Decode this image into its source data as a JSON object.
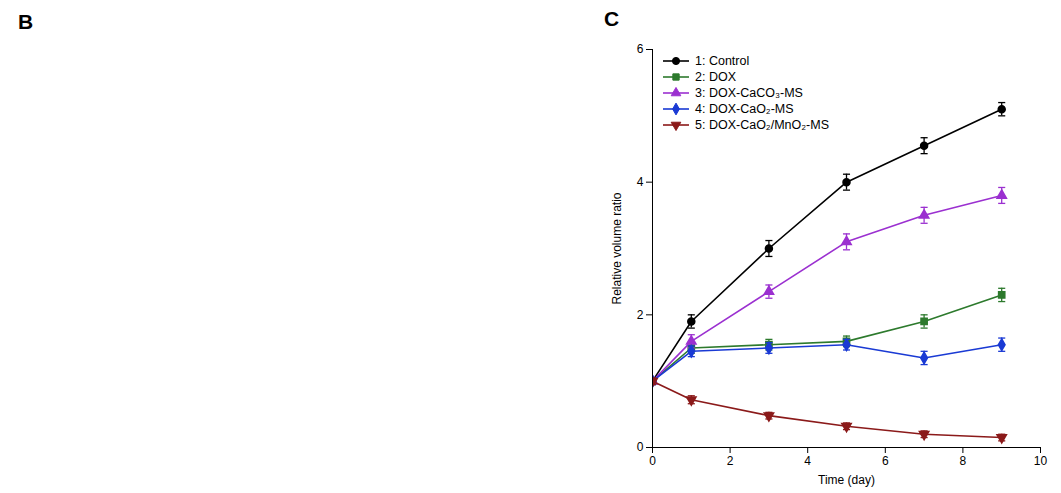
{
  "chart_data": {
    "type": "line",
    "title": "C",
    "annotations": [
      "B"
    ],
    "xlabel": "Time (day)",
    "ylabel": "Relative volume ratio",
    "xlim": [
      0,
      10
    ],
    "ylim": [
      0,
      6
    ],
    "xticks": [
      0,
      2,
      4,
      6,
      8,
      10
    ],
    "yticks": [
      0,
      2,
      4,
      6
    ],
    "grid": false,
    "legend": "upper left",
    "x": [
      0,
      1,
      3,
      5,
      7,
      9
    ],
    "series": [
      {
        "name": "1: Control",
        "color": "#000000",
        "marker": "circle",
        "values": [
          1.0,
          1.9,
          3.0,
          4.0,
          4.55,
          5.1
        ],
        "yerr": [
          0.05,
          0.1,
          0.12,
          0.12,
          0.12,
          0.1
        ]
      },
      {
        "name": "2: DOX",
        "color": "#2d7a2d",
        "marker": "square",
        "values": [
          1.0,
          1.5,
          1.55,
          1.6,
          1.9,
          2.3
        ],
        "yerr": [
          0.05,
          0.08,
          0.08,
          0.08,
          0.1,
          0.1
        ]
      },
      {
        "name": "3: DOX-CaCO₃-MS",
        "color": "#9b30d0",
        "marker": "triangle-up",
        "values": [
          1.0,
          1.6,
          2.35,
          3.1,
          3.5,
          3.8
        ],
        "yerr": [
          0.05,
          0.1,
          0.1,
          0.12,
          0.12,
          0.12
        ]
      },
      {
        "name": "4: DOX-CaO₂-MS",
        "color": "#1a3ad4",
        "marker": "diamond",
        "values": [
          1.0,
          1.45,
          1.5,
          1.55,
          1.35,
          1.55
        ],
        "yerr": [
          0.05,
          0.08,
          0.08,
          0.08,
          0.1,
          0.1
        ]
      },
      {
        "name": "5: DOX-CaO₂/MnO₂-MS",
        "color": "#8b1a1a",
        "marker": "triangle-down",
        "values": [
          1.0,
          0.72,
          0.48,
          0.32,
          0.2,
          0.15
        ],
        "yerr": [
          0.05,
          0.06,
          0.05,
          0.05,
          0.05,
          0.05
        ]
      }
    ]
  }
}
